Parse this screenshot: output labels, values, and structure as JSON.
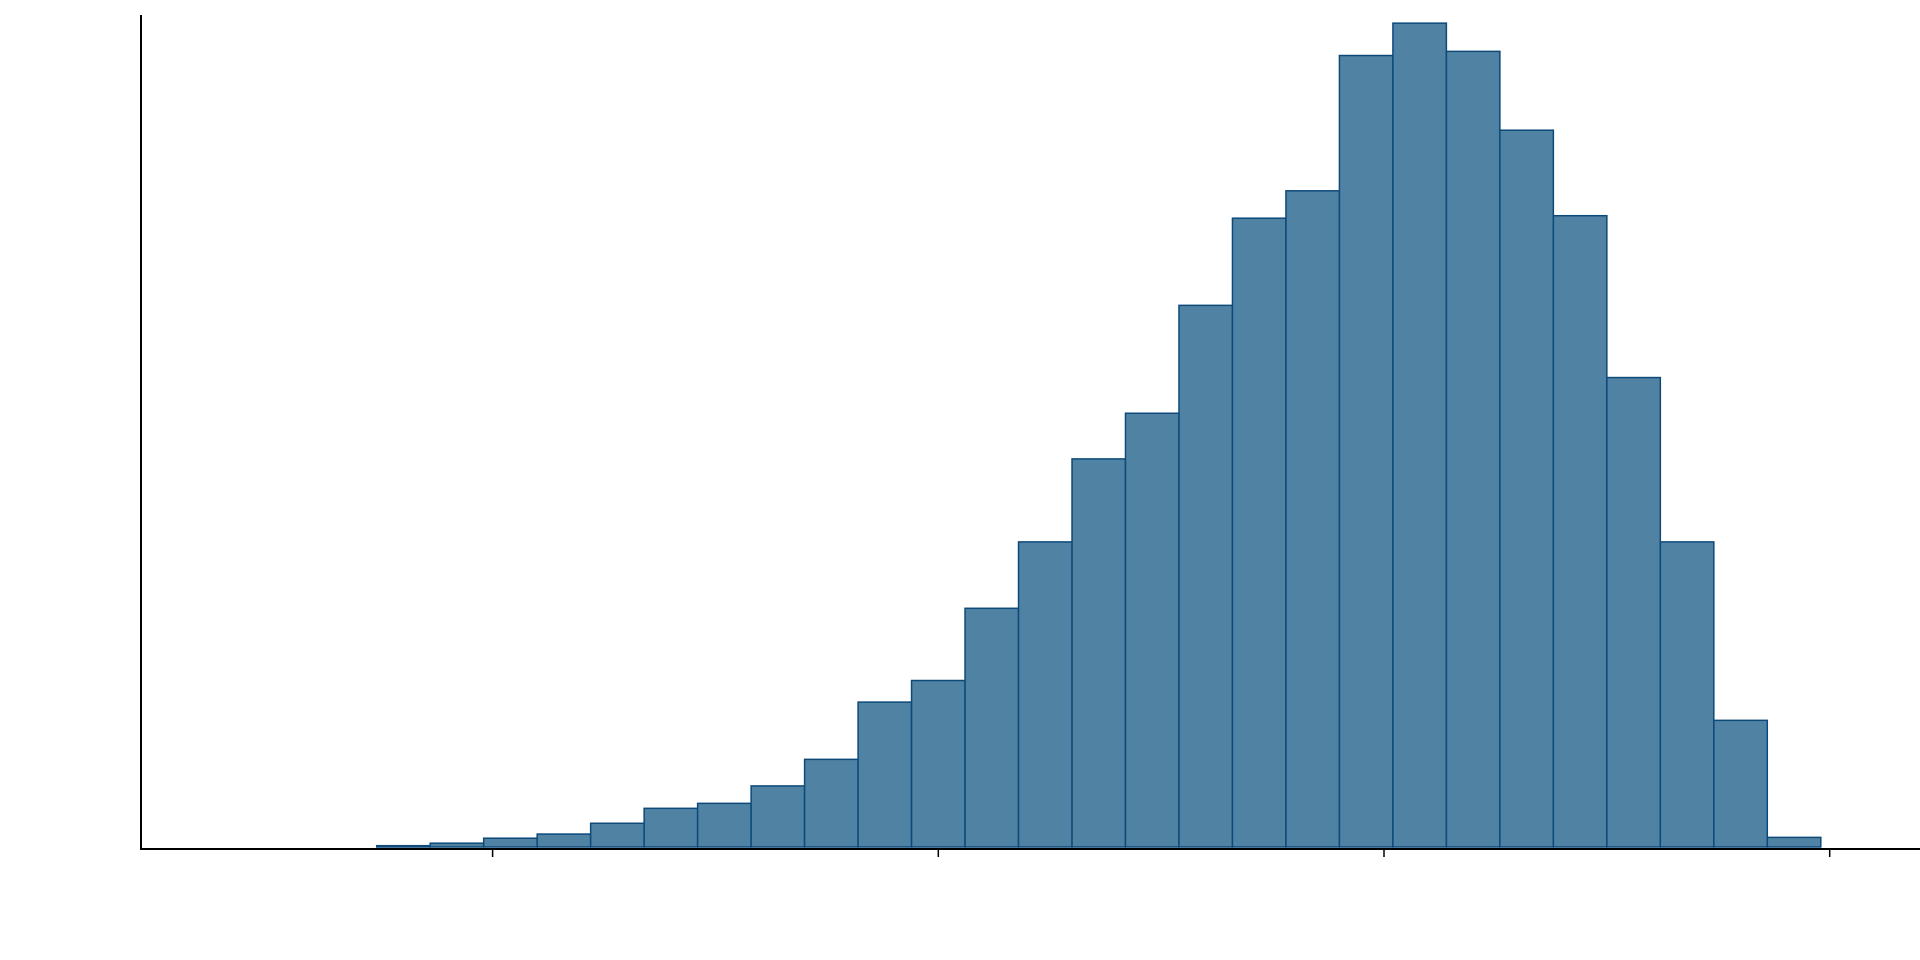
{
  "chart_data": {
    "type": "bar",
    "title": "",
    "xlabel": "",
    "ylabel": "",
    "grid": false,
    "legend": "none",
    "xlim": [
      -2.75,
      1.0
    ],
    "ylim": [
      0,
      1.0
    ],
    "x_ticks": [
      -2,
      -1,
      0,
      1
    ],
    "x_tick_labels": [],
    "y_tick_labels": [],
    "bin_width": 0.12,
    "bins": [
      {
        "x0": -2.62,
        "x1": -2.5,
        "value": 0.002
      },
      {
        "x0": -2.5,
        "x1": -2.38,
        "value": 0.001
      },
      {
        "x0": -2.38,
        "x1": -2.26,
        "value": 0.002
      },
      {
        "x0": -2.26,
        "x1": -2.14,
        "value": 0.004
      },
      {
        "x0": -2.14,
        "x1": -2.02,
        "value": 0.007
      },
      {
        "x0": -2.02,
        "x1": -1.9,
        "value": 0.013
      },
      {
        "x0": -1.9,
        "x1": -1.78,
        "value": 0.018
      },
      {
        "x0": -1.78,
        "x1": -1.66,
        "value": 0.031
      },
      {
        "x0": -1.66,
        "x1": -1.54,
        "value": 0.049
      },
      {
        "x0": -1.54,
        "x1": -1.42,
        "value": 0.055
      },
      {
        "x0": -1.42,
        "x1": -1.3,
        "value": 0.076
      },
      {
        "x0": -1.3,
        "x1": -1.18,
        "value": 0.108
      },
      {
        "x0": -1.18,
        "x1": -1.06,
        "value": 0.177
      },
      {
        "x0": -1.06,
        "x1": -0.94,
        "value": 0.203
      },
      {
        "x0": -0.94,
        "x1": -0.82,
        "value": 0.29
      },
      {
        "x0": -0.82,
        "x1": -0.7,
        "value": 0.37
      },
      {
        "x0": -0.7,
        "x1": -0.58,
        "value": 0.47
      },
      {
        "x0": -0.58,
        "x1": -0.46,
        "value": 0.525
      },
      {
        "x0": -0.46,
        "x1": -0.34,
        "value": 0.655
      },
      {
        "x0": -0.34,
        "x1": -0.22,
        "value": 0.76
      },
      {
        "x0": -0.22,
        "x1": -0.1,
        "value": 0.793
      },
      {
        "x0": -0.1,
        "x1": 0.02,
        "value": 0.956
      },
      {
        "x0": 0.02,
        "x1": 0.14,
        "value": 0.995
      },
      {
        "x0": 0.14,
        "x1": 0.26,
        "value": 0.961
      },
      {
        "x0": 0.26,
        "x1": 0.38,
        "value": 0.866
      },
      {
        "x0": 0.38,
        "x1": 0.5,
        "value": 0.763
      },
      {
        "x0": 0.5,
        "x1": 0.62,
        "value": 0.568
      },
      {
        "x0": 0.62,
        "x1": 0.74,
        "value": 0.37
      },
      {
        "x0": 0.74,
        "x1": 0.86,
        "value": 0.155
      },
      {
        "x0": 0.86,
        "x1": 0.98,
        "value": 0.014
      }
    ],
    "colors": {
      "bar_fill": "#5083a3",
      "bar_edge": "#0d4a7a",
      "axis": "#000000"
    }
  }
}
